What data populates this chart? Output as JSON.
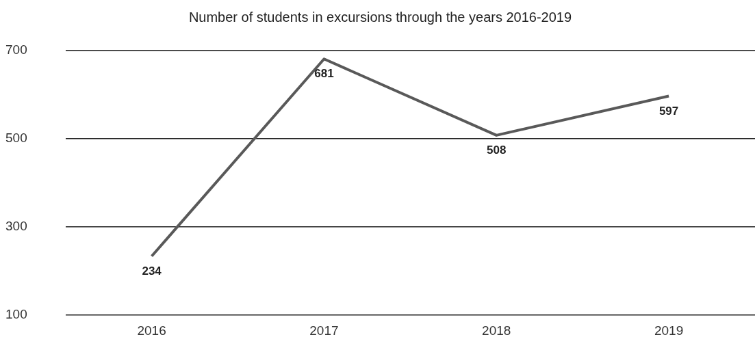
{
  "chart_data": {
    "type": "line",
    "title": "Number of students in excursions through the years 2016-2019",
    "categories": [
      "2016",
      "2017",
      "2018",
      "2019"
    ],
    "series": [
      {
        "color": "#595959",
        "values": [
          234,
          681,
          508,
          597
        ]
      }
    ],
    "ylim": [
      100,
      700
    ],
    "yticks": [
      100,
      300,
      500,
      700
    ],
    "grid": "y",
    "legend": false,
    "marker": "none",
    "line_style": "solid",
    "data_labels": true
  }
}
